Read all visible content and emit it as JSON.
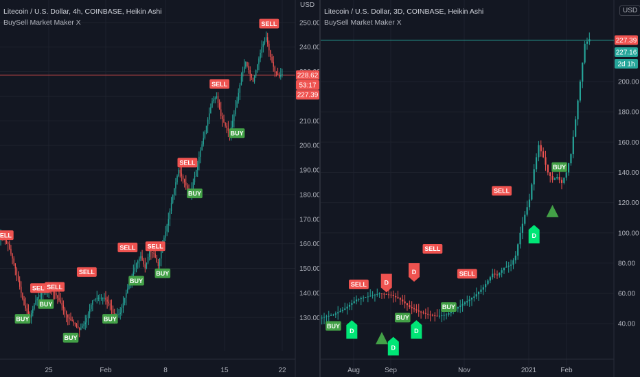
{
  "colors": {
    "background": "#131722",
    "grid": "#1e222d",
    "up": "#26a69a",
    "down": "#ef5350",
    "buy_tag": "#43a047",
    "sell_tag": "#ef5350",
    "d_up_tag": "#00e676",
    "triangle": "#43a047",
    "axis_text": "#b2b5be"
  },
  "left_pane": {
    "title": "Litecoin / U.S. Dollar, 4h, COINBASE, Heikin Ashi",
    "indicator": "BuySell Market Maker X",
    "currency_button": "USD",
    "price_tags": [
      {
        "value": "228.62",
        "price": 228.62,
        "color": "#ef5350"
      },
      {
        "value": "53:17",
        "price": 224.6,
        "color": "#ef5350"
      },
      {
        "value": "227.39",
        "price": 220.6,
        "color": "#ef5350"
      }
    ],
    "chart_data": {
      "type": "candlestick",
      "title": "Litecoin / U.S. Dollar, 4h, COINBASE, Heikin Ashi",
      "ylim": [
        122,
        253
      ],
      "y_ticks": [
        130,
        140,
        150,
        160,
        170,
        180,
        190,
        200,
        210,
        220,
        230,
        240,
        250
      ],
      "y_tick_labels": [
        "130.00",
        "140.00",
        "150.00",
        "160.00",
        "170.00",
        "180.00",
        "190.00",
        "200.00",
        "210.00",
        "220.00",
        "230.00",
        "240.00",
        "250.00"
      ],
      "x_tick_labels": [
        "25",
        "Feb",
        "8",
        "15",
        "22"
      ],
      "current_price": 228.62,
      "anchors": [
        [
          0,
          163
        ],
        [
          5,
          160
        ],
        [
          10,
          150
        ],
        [
          16,
          135
        ],
        [
          20,
          130
        ],
        [
          24,
          137
        ],
        [
          28,
          140
        ],
        [
          33,
          141
        ],
        [
          37,
          140
        ],
        [
          42,
          135
        ],
        [
          46,
          130
        ],
        [
          50,
          128
        ],
        [
          54,
          125
        ],
        [
          58,
          128
        ],
        [
          63,
          137
        ],
        [
          67,
          138
        ],
        [
          71,
          138
        ],
        [
          75,
          135
        ],
        [
          78,
          130
        ],
        [
          82,
          132
        ],
        [
          86,
          140
        ],
        [
          90,
          147
        ],
        [
          93,
          152
        ],
        [
          96,
          155
        ],
        [
          99,
          150
        ],
        [
          102,
          157
        ],
        [
          105,
          156
        ],
        [
          108,
          151
        ],
        [
          111,
          160
        ],
        [
          115,
          170
        ],
        [
          118,
          180
        ],
        [
          122,
          190
        ],
        [
          126,
          185
        ],
        [
          130,
          180
        ],
        [
          134,
          190
        ],
        [
          137,
          198
        ],
        [
          141,
          208
        ],
        [
          145,
          218
        ],
        [
          148,
          220
        ],
        [
          151,
          212
        ],
        [
          154,
          208
        ],
        [
          157,
          205
        ],
        [
          159,
          210
        ],
        [
          162,
          218
        ],
        [
          165,
          228
        ],
        [
          168,
          234
        ],
        [
          171,
          229
        ],
        [
          173,
          226
        ],
        [
          176,
          233
        ],
        [
          179,
          240
        ],
        [
          182,
          244
        ],
        [
          185,
          236
        ],
        [
          188,
          230
        ],
        [
          191,
          228
        ],
        [
          193,
          229
        ]
      ],
      "count": 194,
      "signals": [
        {
          "label": "SELL",
          "index": 2,
          "price": 163.5,
          "type": "sell"
        },
        {
          "label": "BUY",
          "index": 15,
          "price": 129.5,
          "type": "buy"
        },
        {
          "label": "SELL",
          "index": 27,
          "price": 142,
          "type": "sell"
        },
        {
          "label": "BUY",
          "index": 31,
          "price": 135.5,
          "type": "buy"
        },
        {
          "label": "SELL",
          "index": 37,
          "price": 142.5,
          "type": "sell"
        },
        {
          "label": "BUY",
          "index": 48,
          "price": 121.8,
          "type": "buy"
        },
        {
          "label": "SELL",
          "index": 59,
          "price": 148.5,
          "type": "sell"
        },
        {
          "label": "BUY",
          "index": 75,
          "price": 129.5,
          "type": "buy"
        },
        {
          "label": "SELL",
          "index": 87,
          "price": 158.5,
          "type": "sell"
        },
        {
          "label": "BUY",
          "index": 93,
          "price": 145,
          "type": "buy"
        },
        {
          "label": "SELL",
          "index": 106,
          "price": 159,
          "type": "sell"
        },
        {
          "label": "BUY",
          "index": 111,
          "price": 148,
          "type": "buy"
        },
        {
          "label": "SELL",
          "index": 128,
          "price": 193,
          "type": "sell"
        },
        {
          "label": "BUY",
          "index": 133,
          "price": 180.5,
          "type": "buy"
        },
        {
          "label": "SELL",
          "index": 150,
          "price": 225,
          "type": "sell"
        },
        {
          "label": "BUY",
          "index": 162,
          "price": 205,
          "type": "buy"
        },
        {
          "label": "SELL",
          "index": 184,
          "price": 249.5,
          "type": "sell"
        }
      ]
    }
  },
  "right_pane": {
    "title": "Litecoin / U.S. Dollar, 3D, COINBASE, Heikin Ashi",
    "indicator": "BuySell Market Maker X",
    "currency_button": "USD",
    "price_tags": [
      {
        "value": "227.39",
        "price": 227.39,
        "color": "#ef5350"
      },
      {
        "value": "227.16",
        "price": 219.5,
        "color": "#26a69a"
      },
      {
        "value": "2d 1h",
        "price": 211.8,
        "color": "#26a69a"
      }
    ],
    "chart_data": {
      "type": "candlestick",
      "title": "Litecoin / U.S. Dollar, 3D, COINBASE, Heikin Ashi",
      "ylim": [
        17,
        253
      ],
      "y_ticks": [
        40,
        60,
        80,
        100,
        120,
        140,
        160,
        180,
        200
      ],
      "y_tick_labels": [
        "40.00",
        "60.00",
        "80.00",
        "100.00",
        "120.00",
        "140.00",
        "160.00",
        "180.00",
        "200.00"
      ],
      "x_tick_labels": [
        "Aug",
        "Sep",
        "Nov",
        "2021",
        "Feb"
      ],
      "current_price": 227.39,
      "anchors": [
        [
          0,
          44
        ],
        [
          5,
          46
        ],
        [
          10,
          50
        ],
        [
          15,
          56
        ],
        [
          20,
          58
        ],
        [
          25,
          60
        ],
        [
          30,
          59
        ],
        [
          34,
          56
        ],
        [
          38,
          51
        ],
        [
          42,
          48
        ],
        [
          46,
          46
        ],
        [
          50,
          45
        ],
        [
          54,
          46
        ],
        [
          58,
          50
        ],
        [
          62,
          54
        ],
        [
          66,
          58
        ],
        [
          70,
          64
        ],
        [
          74,
          73
        ],
        [
          76,
          72
        ],
        [
          79,
          77
        ],
        [
          82,
          79
        ],
        [
          84,
          85
        ],
        [
          86,
          100
        ],
        [
          88,
          112
        ],
        [
          90,
          122
        ],
        [
          92,
          142
        ],
        [
          94,
          158
        ],
        [
          96,
          150
        ],
        [
          98,
          140
        ],
        [
          100,
          135
        ],
        [
          102,
          137
        ],
        [
          104,
          133
        ],
        [
          106,
          140
        ],
        [
          108,
          152
        ],
        [
          110,
          175
        ],
        [
          112,
          200
        ],
        [
          114,
          225
        ],
        [
          116,
          228
        ]
      ],
      "count": 117,
      "signals": [
        {
          "label": "BUY",
          "index": 5,
          "price": 38.5,
          "type": "buy"
        },
        {
          "label": "SELL",
          "index": 16,
          "price": 66,
          "type": "sell"
        },
        {
          "label": "BUY",
          "index": 35,
          "price": 44,
          "type": "buy"
        },
        {
          "label": "SELL",
          "index": 48,
          "price": 89.5,
          "type": "sell"
        },
        {
          "label": "BUY",
          "index": 55,
          "price": 51,
          "type": "buy"
        },
        {
          "label": "SELL",
          "index": 63,
          "price": 73,
          "type": "sell"
        },
        {
          "label": "SELL",
          "index": 78,
          "price": 127.8,
          "type": "sell"
        },
        {
          "label": "BUY",
          "index": 103,
          "price": 143.5,
          "type": "buy"
        }
      ],
      "d_markers": [
        {
          "label": "D",
          "index": 13,
          "price": 35.5,
          "dir": "up"
        },
        {
          "label": "D",
          "index": 28,
          "price": 67.5,
          "dir": "down"
        },
        {
          "label": "D",
          "index": 31,
          "price": 24.5,
          "dir": "up"
        },
        {
          "label": "D",
          "index": 40,
          "price": 74.5,
          "dir": "down"
        },
        {
          "label": "D",
          "index": 41,
          "price": 35.5,
          "dir": "up"
        },
        {
          "label": "D",
          "index": 92,
          "price": 98.5,
          "dir": "up"
        }
      ],
      "triangles": [
        {
          "index": 26,
          "price": 30
        },
        {
          "index": 100,
          "price": 114
        }
      ]
    }
  }
}
